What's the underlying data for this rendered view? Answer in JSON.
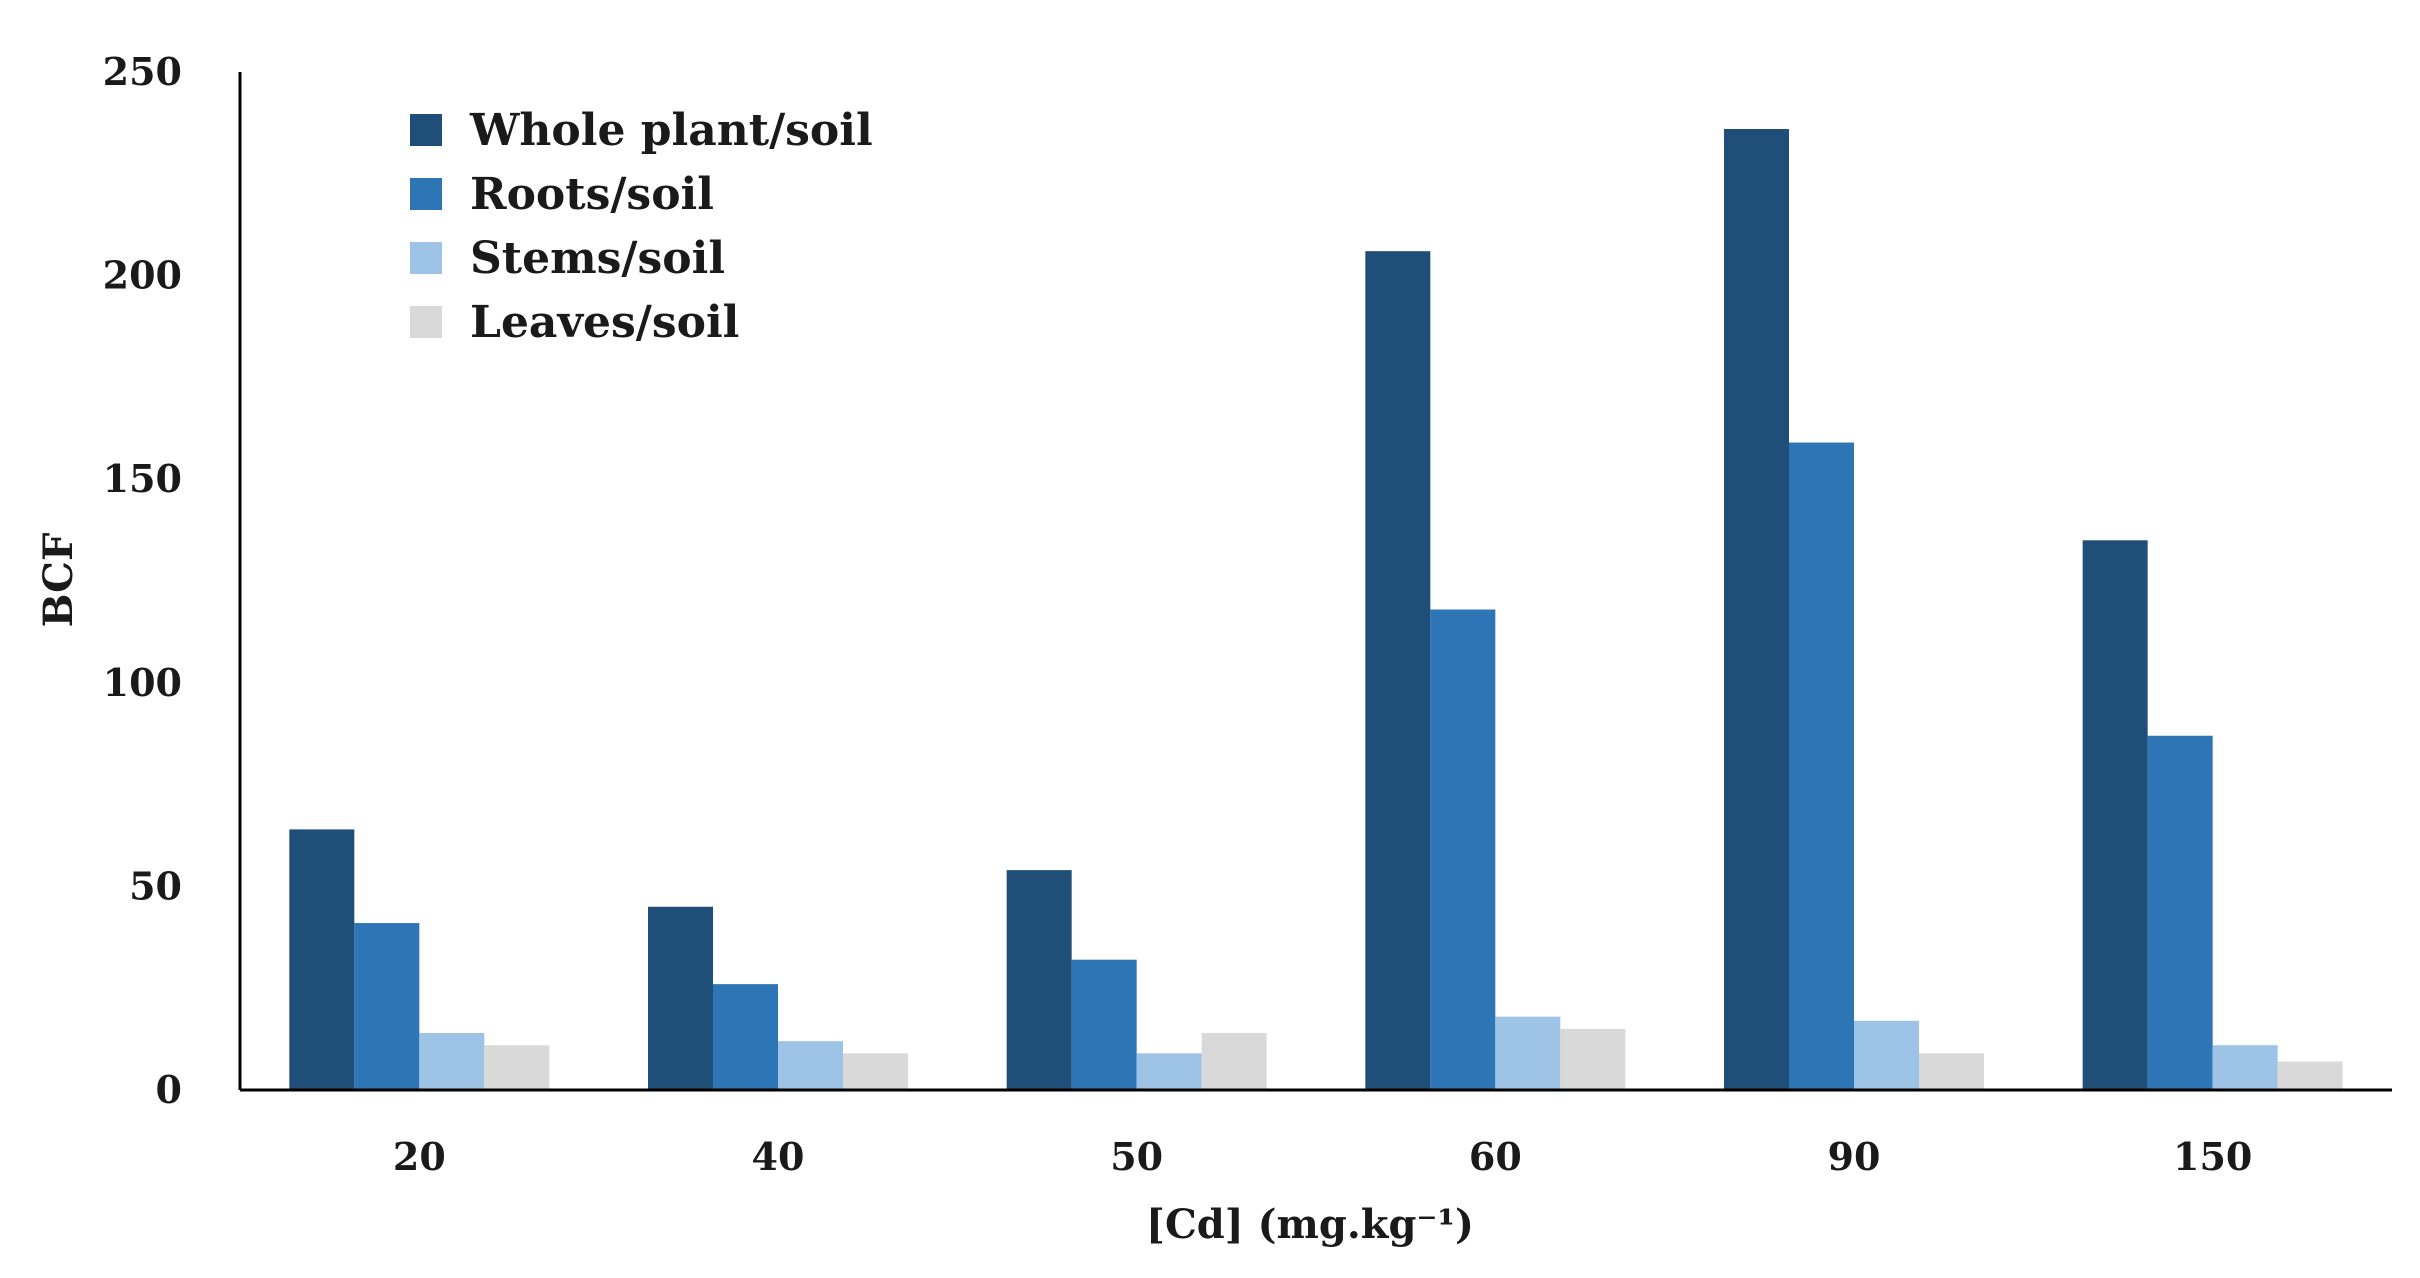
{
  "chart_data": {
    "type": "bar",
    "title": "",
    "xlabel": "[Cd] (mg.kg⁻¹)",
    "ylabel": "BCF",
    "ylim": [
      0,
      250
    ],
    "yticks": [
      0,
      50,
      100,
      150,
      200,
      250
    ],
    "grid": false,
    "legend_position": "top-left",
    "categories": [
      "20",
      "40",
      "50",
      "60",
      "90",
      "150"
    ],
    "series": [
      {
        "name": "Whole plant/soil",
        "color": "#1f4e79",
        "values": [
          64,
          45,
          54,
          206,
          236,
          135
        ]
      },
      {
        "name": "Roots/soil",
        "color": "#2e75b6",
        "values": [
          41,
          26,
          32,
          118,
          159,
          87
        ]
      },
      {
        "name": "Stems/soil",
        "color": "#9dc3e6",
        "values": [
          14,
          12,
          9,
          18,
          17,
          11
        ]
      },
      {
        "name": "Leaves/soil",
        "color": "#d9d9d9",
        "values": [
          11,
          9,
          14,
          15,
          9,
          7
        ]
      }
    ]
  }
}
